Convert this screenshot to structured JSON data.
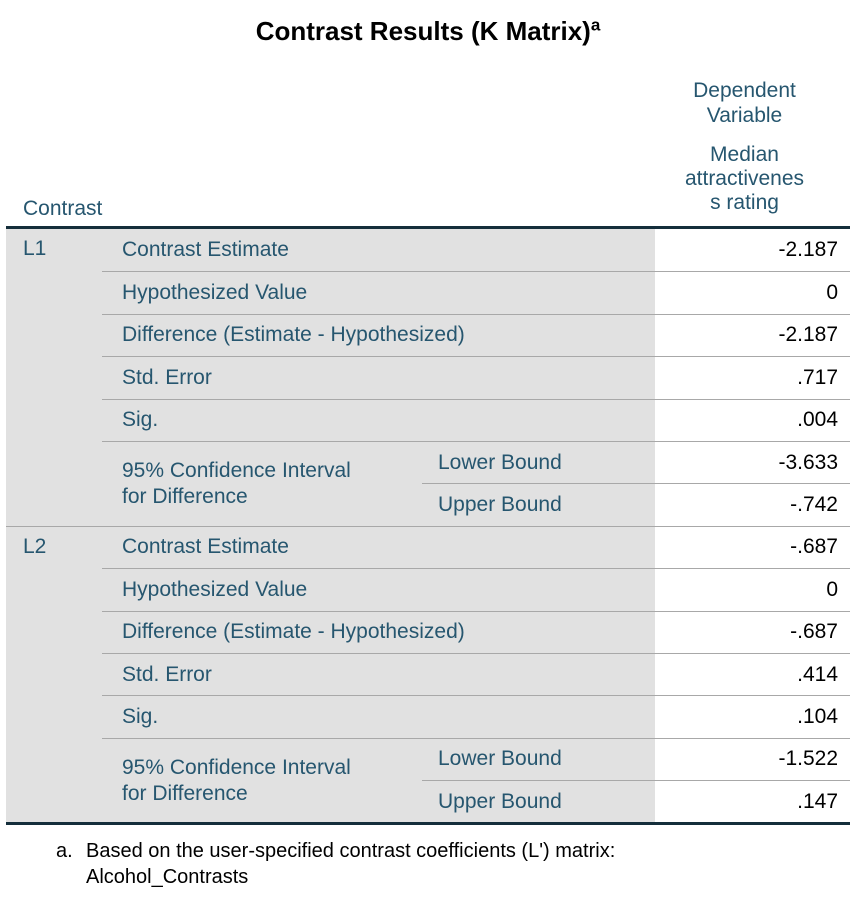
{
  "title": {
    "text": "Contrast Results (K Matrix)",
    "footnote_marker": "a"
  },
  "header": {
    "contrast_column_label": "Contrast",
    "dependent_variable_label": "Dependent\nVariable",
    "dependent_variable_name": "Median\nattractivenes\ns rating"
  },
  "table": {
    "contrasts": [
      {
        "id": "L1",
        "rows": [
          {
            "label": "Contrast Estimate",
            "value": "-2.187"
          },
          {
            "label": "Hypothesized Value",
            "value": "0"
          },
          {
            "label": "Difference (Estimate - Hypothesized)",
            "value": "-2.187"
          },
          {
            "label": "Std. Error",
            "value": ".717"
          },
          {
            "label": "Sig.",
            "value": ".004"
          }
        ],
        "confidence_interval": {
          "label": "95% Confidence Interval\nfor Difference",
          "lower_label": "Lower Bound",
          "lower_value": "-3.633",
          "upper_label": "Upper Bound",
          "upper_value": "-.742"
        }
      },
      {
        "id": "L2",
        "rows": [
          {
            "label": "Contrast Estimate",
            "value": "-.687"
          },
          {
            "label": "Hypothesized Value",
            "value": "0"
          },
          {
            "label": "Difference (Estimate - Hypothesized)",
            "value": "-.687"
          },
          {
            "label": "Std. Error",
            "value": ".414"
          },
          {
            "label": "Sig.",
            "value": ".104"
          }
        ],
        "confidence_interval": {
          "label": "95% Confidence Interval\nfor Difference",
          "lower_label": "Lower Bound",
          "lower_value": "-1.522",
          "upper_label": "Upper Bound",
          "upper_value": ".147"
        }
      }
    ]
  },
  "footnote": {
    "marker": "a.",
    "text": "Based on the user-specified contrast coefficients (L') matrix:\nAlcohol_Contrasts"
  },
  "colors": {
    "label_text": "#26566f",
    "shading": "#e1e1e1",
    "grid_line": "#a8a8a8",
    "frame_line": "#142e3b",
    "value_text": "#000000"
  }
}
